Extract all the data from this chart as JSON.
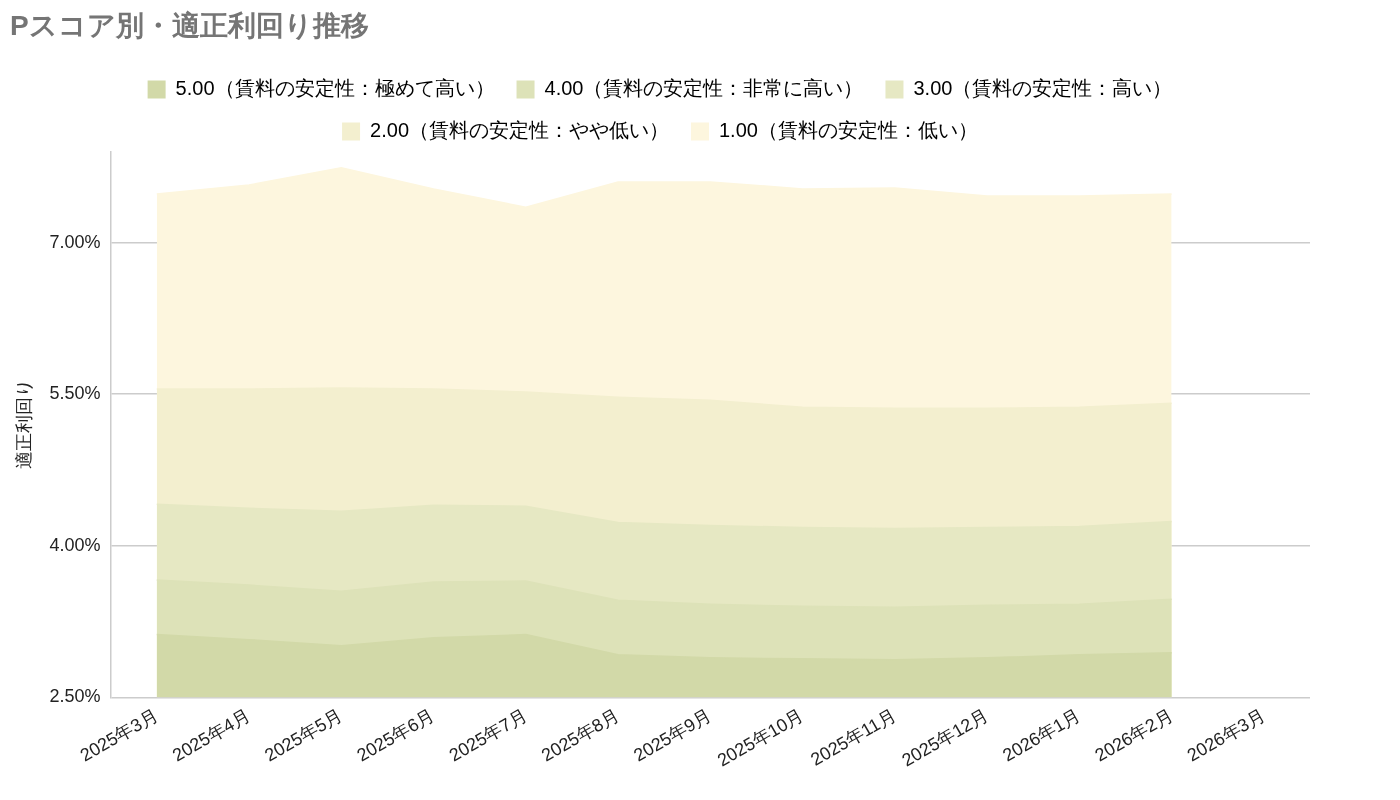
{
  "chart_data": {
    "type": "area",
    "title": "Pスコア別・適正利回り推移",
    "ylabel": "適正利回り",
    "categories": [
      "2025年3月",
      "2025年4月",
      "2025年5月",
      "2025年6月",
      "2025年7月",
      "2025年8月",
      "2025年9月",
      "2025年10月",
      "2025年11月",
      "2025年12月",
      "2026年1月",
      "2026年2月",
      "2026年3月"
    ],
    "series": [
      {
        "name": "5.00（賃料の安定性：極めて高い）",
        "color": "#d2d9a8",
        "values": [
          3.12,
          3.07,
          3.01,
          3.09,
          3.12,
          2.92,
          2.89,
          2.88,
          2.87,
          2.89,
          2.92,
          2.94,
          null
        ]
      },
      {
        "name": "4.00（賃料の安定性：非常に高い）",
        "color": "#dde2b8",
        "values": [
          3.66,
          3.61,
          3.55,
          3.64,
          3.65,
          3.46,
          3.42,
          3.4,
          3.39,
          3.41,
          3.42,
          3.47,
          null
        ]
      },
      {
        "name": "3.00（賃料の安定性：高い）",
        "color": "#e6e8c3",
        "values": [
          4.41,
          4.37,
          4.34,
          4.4,
          4.39,
          4.23,
          4.2,
          4.18,
          4.17,
          4.18,
          4.19,
          4.24,
          null
        ]
      },
      {
        "name": "2.00（賃料の安定性：やや低い）",
        "color": "#f3efcf",
        "values": [
          5.55,
          5.55,
          5.56,
          5.55,
          5.52,
          5.47,
          5.44,
          5.37,
          5.36,
          5.36,
          5.37,
          5.41,
          null
        ]
      },
      {
        "name": "1.00（賃料の安定性：低い）",
        "color": "#fdf6de",
        "values": [
          7.48,
          7.57,
          7.74,
          7.53,
          7.35,
          7.6,
          7.6,
          7.53,
          7.54,
          7.46,
          7.46,
          7.48,
          null
        ]
      }
    ],
    "ylim": [
      2.5,
      7.9
    ],
    "yticks": [
      {
        "value": 2.5,
        "label": "2.50%"
      },
      {
        "value": 4,
        "label": "4.00%"
      },
      {
        "value": 5.5,
        "label": "5.50%"
      },
      {
        "value": 7,
        "label": "7.00%"
      }
    ],
    "grid": "y",
    "legend": "top"
  }
}
